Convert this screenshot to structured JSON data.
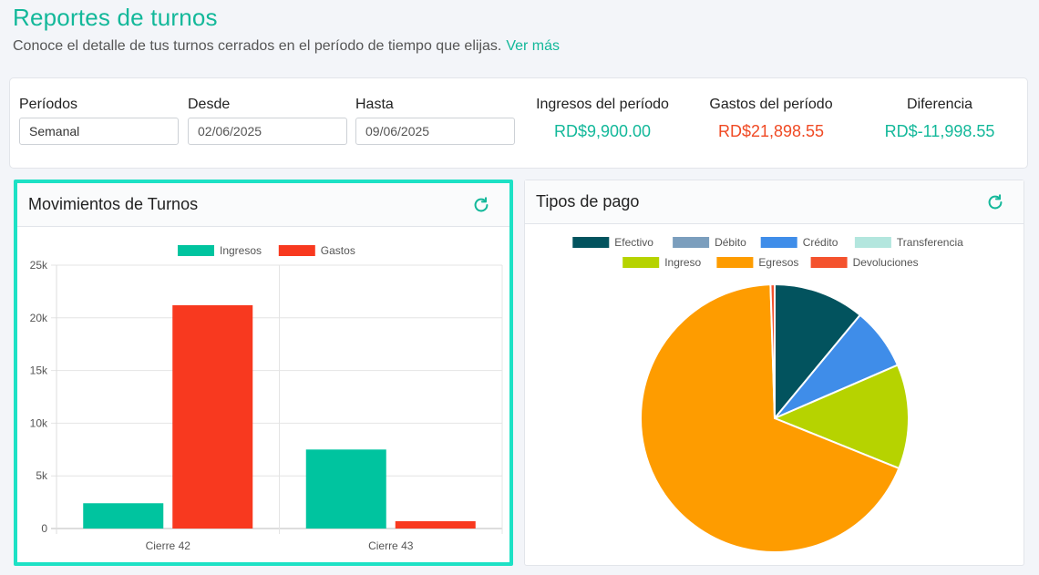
{
  "header": {
    "title": "Reportes de turnos",
    "subtitle": "Conoce el detalle de tus turnos cerrados en el período de tiempo que elijas.",
    "more_link": "Ver más"
  },
  "filters": {
    "period_label": "Períodos",
    "period_value": "Semanal",
    "from_label": "Desde",
    "from_value": "02/06/2025",
    "to_label": "Hasta",
    "to_value": "09/06/2025"
  },
  "summary": {
    "income_label": "Ingresos del período",
    "income_value": "RD$9,900.00",
    "expense_label": "Gastos del período",
    "expense_value": "RD$21,898.55",
    "diff_label": "Diferencia",
    "diff_value": "RD$-11,998.55"
  },
  "movements_card": {
    "title": "Movimientos de Turnos",
    "refresh_icon": "refresh-icon"
  },
  "payments_card": {
    "title": "Tipos de pago",
    "refresh_icon": "refresh-icon"
  },
  "chart_data": [
    {
      "type": "bar",
      "categories": [
        "Cierre 42",
        "Cierre 43"
      ],
      "series": [
        {
          "name": "Ingresos",
          "values": [
            2400,
            7500
          ],
          "color": "#00c49f"
        },
        {
          "name": "Gastos",
          "values": [
            21200,
            700
          ],
          "color": "#f8391f"
        }
      ],
      "y_ticks": [
        "0",
        "5k",
        "10k",
        "15k",
        "20k",
        "25k"
      ],
      "ylim": [
        0,
        25000
      ],
      "legend": "top",
      "grid": true
    },
    {
      "type": "pie",
      "legend": "top",
      "slices": [
        {
          "name": "Efectivo",
          "value": 11.0,
          "color": "#02535e"
        },
        {
          "name": "Débito",
          "value": 0,
          "color": "#7b9ebd"
        },
        {
          "name": "Crédito",
          "value": 7.5,
          "color": "#3f8de9"
        },
        {
          "name": "Transferencia",
          "value": 0,
          "color": "#b3e6de"
        },
        {
          "name": "Ingreso",
          "value": 12.6,
          "color": "#b6d300"
        },
        {
          "name": "Egresos",
          "value": 68.4,
          "color": "#fe9c00"
        },
        {
          "name": "Devoluciones",
          "value": 0.5,
          "color": "#f4522d"
        }
      ]
    }
  ]
}
